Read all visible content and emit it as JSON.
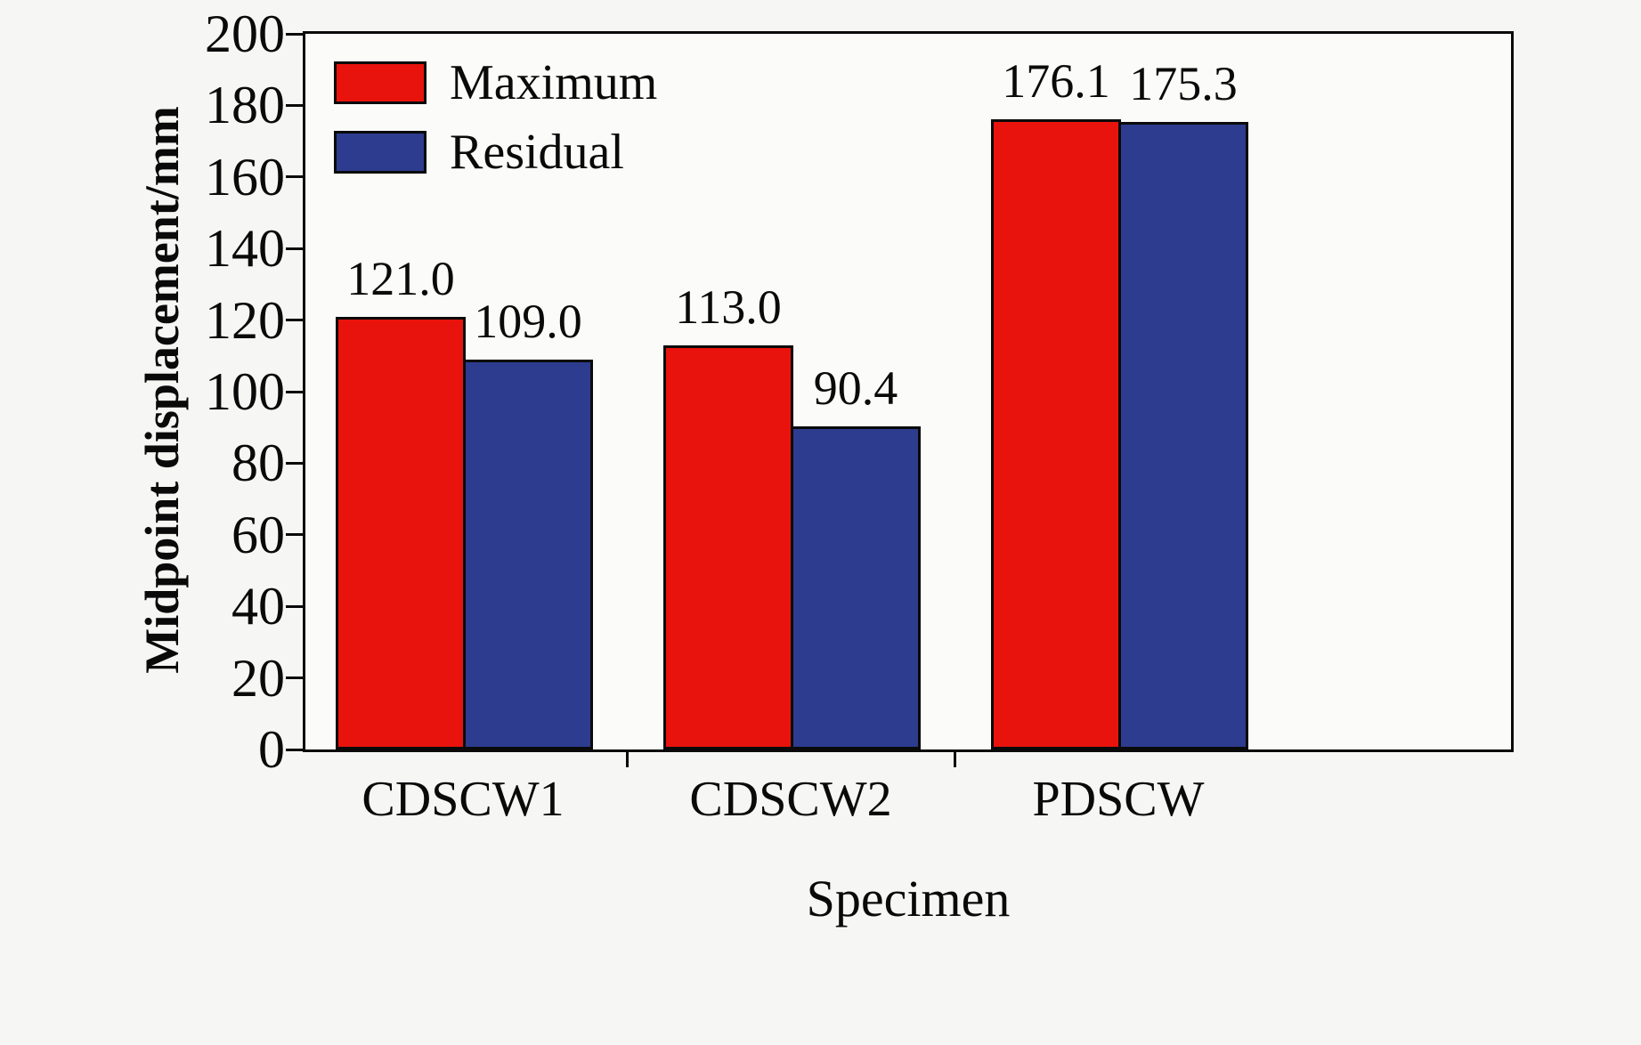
{
  "chart_data": {
    "type": "bar",
    "title": "",
    "xlabel": "Specimen",
    "ylabel": "Midpoint displacement/mm",
    "categories": [
      "CDSCW1",
      "CDSCW2",
      "PDSCW"
    ],
    "series": [
      {
        "name": "Maximum",
        "color": "#e8130c",
        "values": [
          121.0,
          113.0,
          176.1
        ]
      },
      {
        "name": "Residual",
        "color": "#2d3c8e",
        "values": [
          109.0,
          90.4,
          175.3
        ]
      }
    ],
    "value_labels": [
      [
        "121.0",
        "109.0"
      ],
      [
        "113.0",
        "90.4"
      ],
      [
        "176.1",
        "175.3"
      ]
    ],
    "ylim": [
      0,
      200
    ],
    "yticks": [
      0,
      20,
      40,
      60,
      80,
      100,
      120,
      140,
      160,
      180,
      200
    ],
    "ytick_step": 20,
    "grid": false,
    "legend_position": "top-left",
    "frame_color": "#0a0a0a",
    "plot_background": "#fbfbf9"
  }
}
